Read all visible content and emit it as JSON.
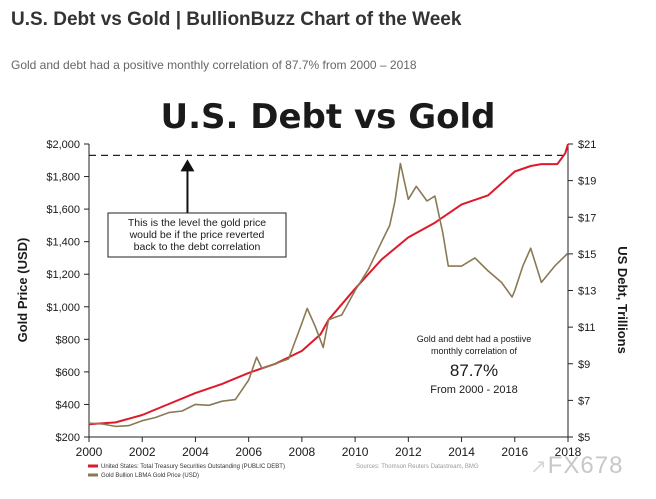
{
  "page": {
    "title": "U.S. Debt vs Gold | BullionBuzz Chart of the Week",
    "subtitle": "Gold and debt had a positive monthly correlation of 87.7% from 2000 – 2018"
  },
  "watermark": {
    "text": "FX678",
    "icon": "arrow-icon"
  },
  "chart_data": {
    "type": "line",
    "title": "U.S. Debt vs Gold",
    "xlabel": "",
    "ylabel_left": "Gold Price (USD)",
    "ylabel_right": "US Debt, Trillions",
    "xlim": [
      2000,
      2018
    ],
    "ylim_left": [
      200,
      2000
    ],
    "ylim_right": [
      5,
      21
    ],
    "x_ticks": [
      2000,
      2002,
      2004,
      2006,
      2008,
      2010,
      2012,
      2014,
      2016,
      2018
    ],
    "x_tick_labels": [
      "2000",
      "2002",
      "2004",
      "2006",
      "2008",
      "2010",
      "2012",
      "2014",
      "2016",
      "2018"
    ],
    "y_left_ticks": [
      200,
      400,
      600,
      800,
      1000,
      1200,
      1400,
      1600,
      1800,
      2000
    ],
    "y_left_tick_labels": [
      "$200",
      "$400",
      "$600",
      "$800",
      "$1,000",
      "$1,200",
      "$1,400",
      "$1,600",
      "$1,800",
      "$2,000"
    ],
    "y_right_ticks": [
      5,
      7,
      9,
      11,
      13,
      15,
      17,
      19,
      21
    ],
    "y_right_tick_labels": [
      "$5",
      "$7",
      "$9",
      "$11",
      "$13",
      "$15",
      "$17",
      "$19",
      "$21"
    ],
    "reference_line": {
      "axis": "left",
      "value": 1930,
      "style": "dashed"
    },
    "annotations": {
      "box_lines": [
        "This is the level the gold price",
        "would be if the price reverted",
        "back to the debt correlation"
      ],
      "arrow_x": 2003.7,
      "corr_lines": [
        "Gold and debt had a postiive",
        "monthly correlation of"
      ],
      "corr_value": "87.7%",
      "corr_period": "From 2000 - 2018"
    },
    "legend": {
      "placement": "bottom-left",
      "items": [
        "United States: Total Treasury Securities Outstanding (PUBLIC DEBT)",
        "Gold Bullion LBMA Gold Price (USD)"
      ]
    },
    "sources": "Sources: Thomson Reuters Datastream, BMG",
    "series": [
      {
        "name": "United States: Total Treasury Securities Outstanding (PUBLIC DEBT)",
        "axis": "right",
        "color": "#e0192a",
        "x": [
          2000,
          2001,
          2002,
          2003,
          2004,
          2005,
          2006,
          2007,
          2008,
          2008.7,
          2009,
          2010,
          2011,
          2012,
          2013,
          2014,
          2015,
          2016,
          2016.6,
          2017,
          2017.6,
          2017.9,
          2018
        ],
        "values": [
          5.7,
          5.8,
          6.2,
          6.8,
          7.4,
          7.9,
          8.5,
          9.0,
          9.7,
          10.6,
          11.4,
          13.1,
          14.7,
          15.9,
          16.7,
          17.7,
          18.2,
          19.5,
          19.8,
          19.9,
          19.9,
          20.5,
          21.0
        ]
      },
      {
        "name": "Gold Bullion LBMA Gold Price (USD)",
        "axis": "left",
        "color": "#8a7a53",
        "x": [
          2000,
          2000.5,
          2001,
          2001.5,
          2002,
          2002.5,
          2003,
          2003.5,
          2004,
          2004.5,
          2005,
          2005.5,
          2006,
          2006.3,
          2006.5,
          2007,
          2007.5,
          2008,
          2008.2,
          2008.5,
          2008.8,
          2009,
          2009.5,
          2010,
          2010.5,
          2011,
          2011.3,
          2011.5,
          2011.7,
          2012,
          2012.3,
          2012.7,
          2013,
          2013.3,
          2013.5,
          2014,
          2014.5,
          2015,
          2015.5,
          2015.9,
          2016,
          2016.3,
          2016.6,
          2017,
          2017.5,
          2018
        ],
        "values": [
          285,
          280,
          265,
          270,
          300,
          320,
          350,
          360,
          400,
          395,
          420,
          430,
          550,
          690,
          620,
          650,
          680,
          900,
          990,
          880,
          750,
          920,
          950,
          1100,
          1230,
          1400,
          1500,
          1650,
          1880,
          1660,
          1740,
          1650,
          1680,
          1450,
          1250,
          1250,
          1300,
          1220,
          1150,
          1060,
          1100,
          1250,
          1360,
          1150,
          1250,
          1330
        ]
      }
    ]
  }
}
